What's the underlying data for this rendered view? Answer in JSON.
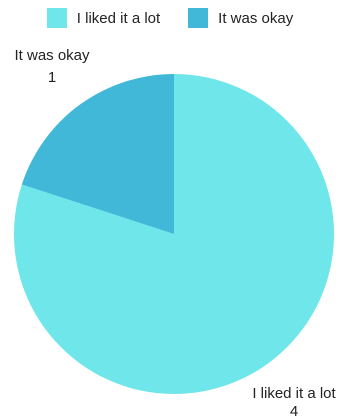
{
  "chart_data": {
    "type": "pie",
    "categories": [
      "I liked it a lot",
      "It was okay"
    ],
    "values": [
      4,
      1
    ],
    "colors": [
      "#6ee6ea",
      "#41b8d8"
    ],
    "legend_position": "top"
  }
}
